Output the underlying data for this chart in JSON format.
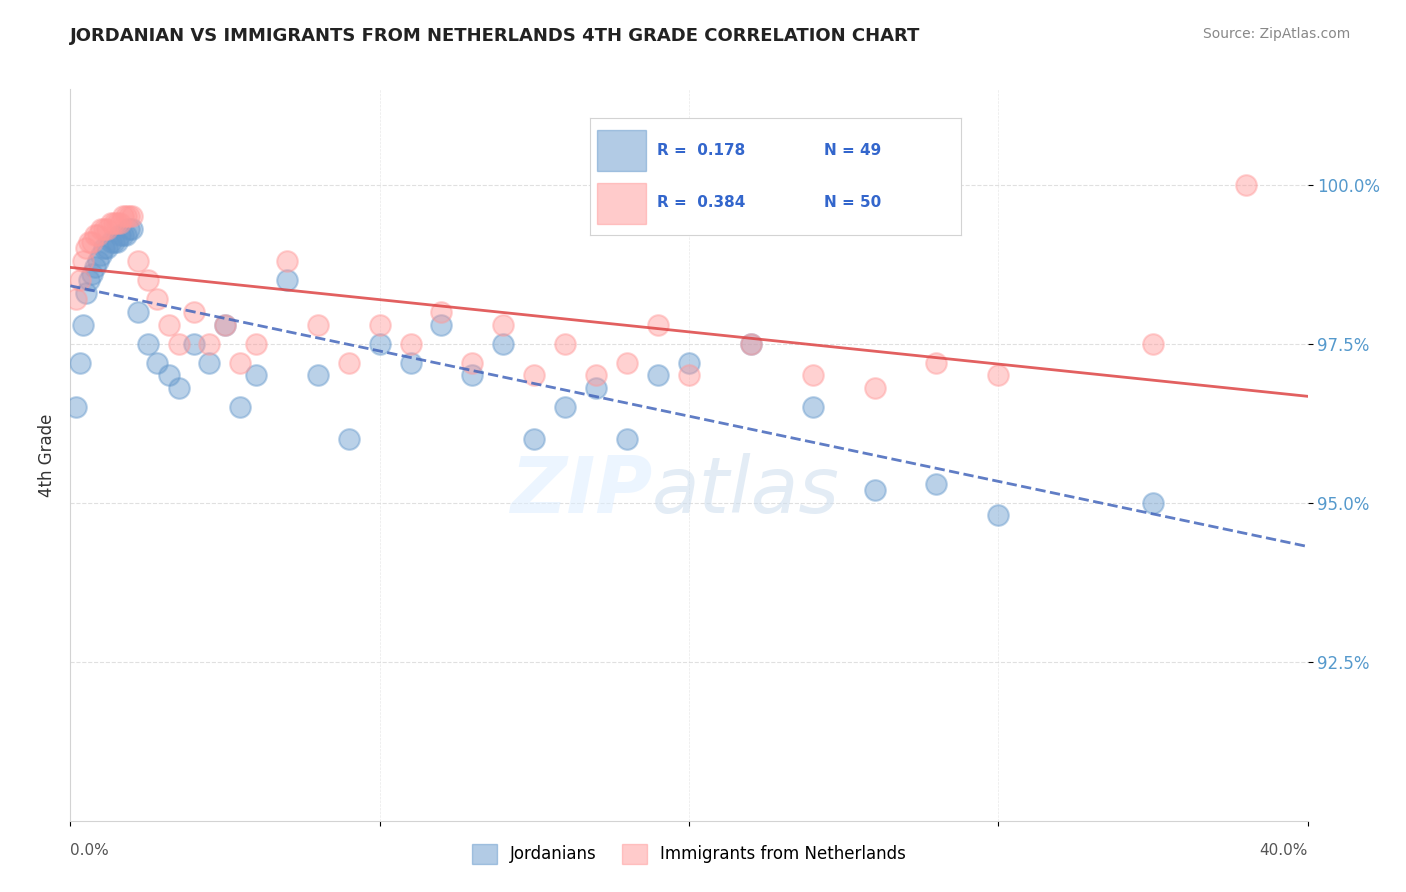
{
  "title": "JORDANIAN VS IMMIGRANTS FROM NETHERLANDS 4TH GRADE CORRELATION CHART",
  "source": "Source: ZipAtlas.com",
  "ylabel": "4th Grade",
  "r_blue": 0.178,
  "n_blue": 49,
  "r_pink": 0.384,
  "n_pink": 50,
  "blue_color": "#6699CC",
  "pink_color": "#FF9999",
  "trend_blue": "#4466BB",
  "trend_pink": "#DD4444",
  "xlim": [
    0.0,
    40.0
  ],
  "ylim": [
    90.0,
    101.5
  ],
  "yticks": [
    92.5,
    95.0,
    97.5,
    100.0
  ],
  "blue_x": [
    0.2,
    0.3,
    0.4,
    0.5,
    0.6,
    0.7,
    0.8,
    0.9,
    1.0,
    1.1,
    1.2,
    1.3,
    1.4,
    1.5,
    1.6,
    1.7,
    1.8,
    1.9,
    2.0,
    2.2,
    2.5,
    2.8,
    3.2,
    3.5,
    4.0,
    4.5,
    5.0,
    5.5,
    6.0,
    7.0,
    8.0,
    9.0,
    10.0,
    11.0,
    12.0,
    13.0,
    14.0,
    15.0,
    16.0,
    17.0,
    18.0,
    19.0,
    20.0,
    22.0,
    24.0,
    26.0,
    28.0,
    30.0,
    35.0
  ],
  "blue_y": [
    96.5,
    97.2,
    97.8,
    98.3,
    98.5,
    98.6,
    98.7,
    98.8,
    98.9,
    99.0,
    99.0,
    99.1,
    99.1,
    99.1,
    99.2,
    99.2,
    99.2,
    99.3,
    99.3,
    98.0,
    97.5,
    97.2,
    97.0,
    96.8,
    97.5,
    97.2,
    97.8,
    96.5,
    97.0,
    98.5,
    97.0,
    96.0,
    97.5,
    97.2,
    97.8,
    97.0,
    97.5,
    96.0,
    96.5,
    96.8,
    96.0,
    97.0,
    97.2,
    97.5,
    96.5,
    95.2,
    95.3,
    94.8,
    95.0
  ],
  "pink_x": [
    0.2,
    0.3,
    0.4,
    0.5,
    0.6,
    0.7,
    0.8,
    0.9,
    1.0,
    1.1,
    1.2,
    1.3,
    1.4,
    1.5,
    1.6,
    1.7,
    1.8,
    1.9,
    2.0,
    2.2,
    2.5,
    2.8,
    3.2,
    3.5,
    4.0,
    4.5,
    5.0,
    5.5,
    6.0,
    7.0,
    8.0,
    9.0,
    10.0,
    11.0,
    12.0,
    13.0,
    14.0,
    15.0,
    16.0,
    17.0,
    18.0,
    19.0,
    20.0,
    22.0,
    24.0,
    26.0,
    28.0,
    30.0,
    35.0,
    38.0
  ],
  "pink_y": [
    98.2,
    98.5,
    98.8,
    99.0,
    99.1,
    99.1,
    99.2,
    99.2,
    99.3,
    99.3,
    99.3,
    99.4,
    99.4,
    99.4,
    99.4,
    99.5,
    99.5,
    99.5,
    99.5,
    98.8,
    98.5,
    98.2,
    97.8,
    97.5,
    98.0,
    97.5,
    97.8,
    97.2,
    97.5,
    98.8,
    97.8,
    97.2,
    97.8,
    97.5,
    98.0,
    97.2,
    97.8,
    97.0,
    97.5,
    97.0,
    97.2,
    97.8,
    97.0,
    97.5,
    97.0,
    96.8,
    97.2,
    97.0,
    97.5,
    100.0
  ]
}
